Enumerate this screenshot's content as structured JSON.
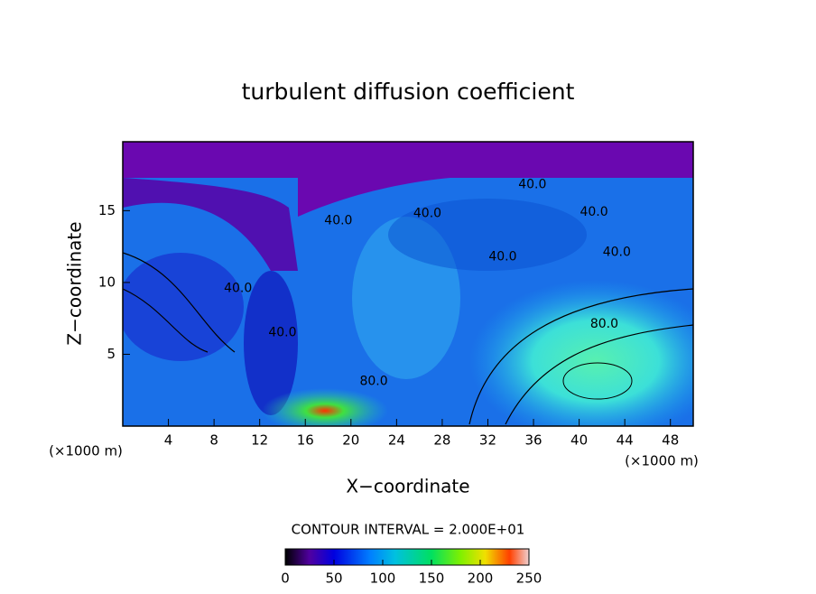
{
  "chart_data": {
    "type": "contour",
    "title": "turbulent diffusion coefficient",
    "xlabel": "X−coordinate",
    "ylabel": "Z−coordinate",
    "unit_labels": [
      "(×1000 m)",
      "(×1000 m)"
    ],
    "xlim": [
      0,
      50
    ],
    "ylim": [
      0,
      19.8
    ],
    "xticks": [
      4,
      8,
      12,
      16,
      20,
      24,
      28,
      32,
      36,
      40,
      44,
      48
    ],
    "yticks": [
      5,
      10,
      15
    ],
    "contour_interval_text": "CONTOUR INTERVAL = 2.000E+01",
    "colorbar": {
      "lim": [
        0,
        250
      ],
      "ticks": [
        0,
        50,
        100,
        150,
        200,
        250
      ]
    },
    "annotations": [
      {
        "text": "40.0",
        "x": 35.9,
        "y": 16.8
      },
      {
        "text": "40.0",
        "x": 41.3,
        "y": 14.9
      },
      {
        "text": "40.0",
        "x": 43.3,
        "y": 12.1
      },
      {
        "text": "80.0",
        "x": 42.2,
        "y": 7.1
      },
      {
        "text": "80.0",
        "x": 22.0,
        "y": 3.1
      },
      {
        "text": "40.0",
        "x": 18.9,
        "y": 14.3
      },
      {
        "text": "40.0",
        "x": 26.7,
        "y": 14.8
      },
      {
        "text": "40.0",
        "x": 33.3,
        "y": 11.8
      },
      {
        "text": "40.0",
        "x": 10.1,
        "y": 9.6
      },
      {
        "text": "40.0",
        "x": 14.0,
        "y": 6.5
      }
    ]
  }
}
